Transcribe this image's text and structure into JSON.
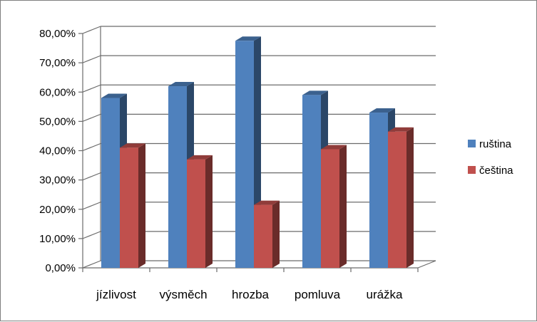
{
  "chart_data": {
    "type": "bar",
    "style": "3d-clustered-column",
    "categories": [
      "jízlivost",
      "výsměch",
      "hrozba",
      "pomluva",
      "urážka"
    ],
    "series": [
      {
        "name": "ruština",
        "values": [
          58.0,
          62.0,
          77.5,
          59.0,
          53.0
        ],
        "color": "#4f81bd"
      },
      {
        "name": "čeština",
        "values": [
          41.0,
          37.0,
          21.5,
          40.5,
          46.5
        ],
        "color": "#c0504d"
      }
    ],
    "y_tick_labels": [
      "0,00%",
      "10,00%",
      "20,00%",
      "30,00%",
      "40,00%",
      "50,00%",
      "60,00%",
      "70,00%",
      "80,00%"
    ],
    "ylim": [
      0,
      80
    ],
    "y_unit": "percent",
    "grid": true,
    "legend_position": "right",
    "title": "",
    "xlabel": "",
    "ylabel": ""
  }
}
